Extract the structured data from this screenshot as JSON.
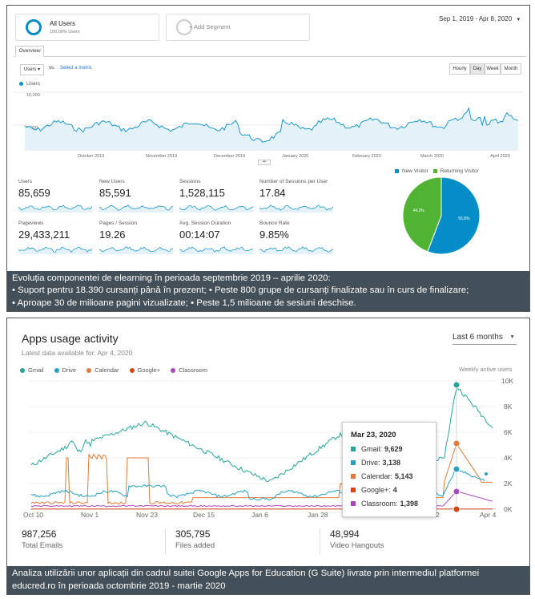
{
  "analytics": {
    "segments": [
      {
        "title": "All Users",
        "sub": "100.00% Users"
      },
      {
        "title": "+ Add Segment",
        "sub": ""
      }
    ],
    "date_range": "Sep 1, 2019 - Apr 8, 2020",
    "tab_overview": "Overview",
    "metric_select": "Users",
    "vs": "vs.",
    "select_metric": "Select a metric",
    "granularity": [
      "Hourly",
      "Day",
      "Week",
      "Month"
    ],
    "legend_users": "Users",
    "colors": {
      "accent": "#058dc7",
      "new": "#058dc7",
      "returning": "#50b432"
    },
    "metrics": [
      {
        "label": "Users",
        "value": "85,659"
      },
      {
        "label": "New Users",
        "value": "85,591"
      },
      {
        "label": "Sessions",
        "value": "1,528,115"
      },
      {
        "label": "Number of Sessions per User",
        "value": "17.84"
      },
      {
        "label": "Pageviews",
        "value": "29,433,211"
      },
      {
        "label": "Pages / Session",
        "value": "19.26"
      },
      {
        "label": "Avg. Session Duration",
        "value": "00:14:07"
      },
      {
        "label": "Bounce Rate",
        "value": "9.85%"
      }
    ],
    "pie_legend": [
      "New Visitor",
      "Returning Visitor"
    ],
    "chart_data": [
      {
        "type": "line",
        "series": [
          {
            "name": "Users"
          }
        ],
        "y_ticks": [
          "10,000",
          "5,000"
        ],
        "x_ticks": [
          "October 2019",
          "November 2019",
          "December 2019",
          "January 2020",
          "February 2020",
          "March 2020",
          "April 2020"
        ],
        "ylim": [
          0,
          10000
        ]
      },
      {
        "type": "pie",
        "labels": [
          "New Visitor",
          "Returning Visitor"
        ],
        "values": [
          55.8,
          44.2
        ],
        "slice_labels": [
          "55.8%",
          "44.2%"
        ]
      }
    ]
  },
  "caption1": {
    "line1": "Evoluția componentei de elearning în perioada septembrie 2019 – aprilie 2020:",
    "line2": "• Suport pentru 18.390 cursanți până în prezent; • Peste 800 grupe de cursanți finalizate sau în curs de finalizare;",
    "line3": "• Aproape 30 de milioane pagini vizualizate; • Peste 1,5 milioane de sesiuni deschise."
  },
  "apps": {
    "title": "Apps usage activity",
    "subtitle": "Latest data available for: Apr 4, 2020",
    "period": "Last 6 months",
    "weekly_label": "Weekly active users",
    "legend": [
      {
        "name": "Gmail",
        "color": "#26a69a"
      },
      {
        "name": "Drive",
        "color": "#26a1c4"
      },
      {
        "name": "Calendar",
        "color": "#e07b39"
      },
      {
        "name": "Google+",
        "color": "#d84315"
      },
      {
        "name": "Classroom",
        "color": "#ab47bc"
      }
    ],
    "tooltip": {
      "date": "Mar 23, 2020",
      "rows": [
        {
          "name": "Gmail:",
          "value": "9,629",
          "color": "#26a69a"
        },
        {
          "name": "Drive:",
          "value": "3,138",
          "color": "#26a1c4"
        },
        {
          "name": "Calendar:",
          "value": "5,143",
          "color": "#e07b39"
        },
        {
          "name": "Google+:",
          "value": "4",
          "color": "#d84315"
        },
        {
          "name": "Classroom:",
          "value": "1,398",
          "color": "#ab47bc"
        }
      ]
    },
    "chart_data": {
      "type": "line",
      "y_ticks": [
        "10K",
        "8K",
        "6K",
        "4K",
        "2K",
        "0K"
      ],
      "x_ticks": [
        "Oct 10",
        "Nov 1",
        "Nov 23",
        "Dec 15",
        "Jan 6",
        "Jan 28",
        "2",
        "Apr 4"
      ],
      "ylim": [
        0,
        10000
      ]
    },
    "stats": [
      {
        "value": "987,256",
        "label": "Total Emails"
      },
      {
        "value": "305,795",
        "label": "Files added"
      },
      {
        "value": "48,994",
        "label": "Video Hangouts"
      }
    ]
  },
  "caption2": {
    "line1": "Analiza utilizării unor aplicații din cadrul suitei Google Apps for Education (G Suite) livrate prin intermediul platformei",
    "line2": "educred.ro în perioada octombrie 2019 - martie 2020"
  }
}
